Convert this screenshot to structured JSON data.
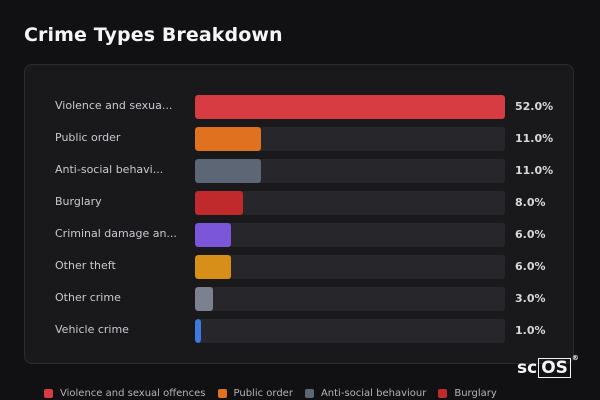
{
  "title": "Crime Types Breakdown",
  "chart_data": {
    "type": "bar",
    "orientation": "horizontal",
    "categories": [
      "Violence and sexua...",
      "Public order",
      "Anti-social behavi...",
      "Burglary",
      "Criminal damage an...",
      "Other theft",
      "Other crime",
      "Vehicle crime"
    ],
    "values": [
      52.0,
      11.0,
      11.0,
      8.0,
      6.0,
      6.0,
      3.0,
      1.0
    ],
    "value_labels": [
      "52.0%",
      "11.0%",
      "11.0%",
      "8.0%",
      "6.0%",
      "6.0%",
      "3.0%",
      "1.0%"
    ],
    "xlim": [
      0,
      52
    ],
    "colors": [
      "#d63c41",
      "#e0711f",
      "#5d6675",
      "#c12a2c",
      "#7b56d8",
      "#d88f1a",
      "#7c818f",
      "#3e79dd"
    ],
    "grid": false,
    "legend_placement": "bottom"
  },
  "legend": [
    {
      "label": "Violence and sexual offences",
      "color": "#d63c41"
    },
    {
      "label": "Public order",
      "color": "#e0711f"
    },
    {
      "label": "Anti-social behaviour",
      "color": "#5d6675"
    },
    {
      "label": "Burglary",
      "color": "#c12a2c"
    }
  ],
  "logo": {
    "left": "sc",
    "box": "OS",
    "mark": "®"
  }
}
